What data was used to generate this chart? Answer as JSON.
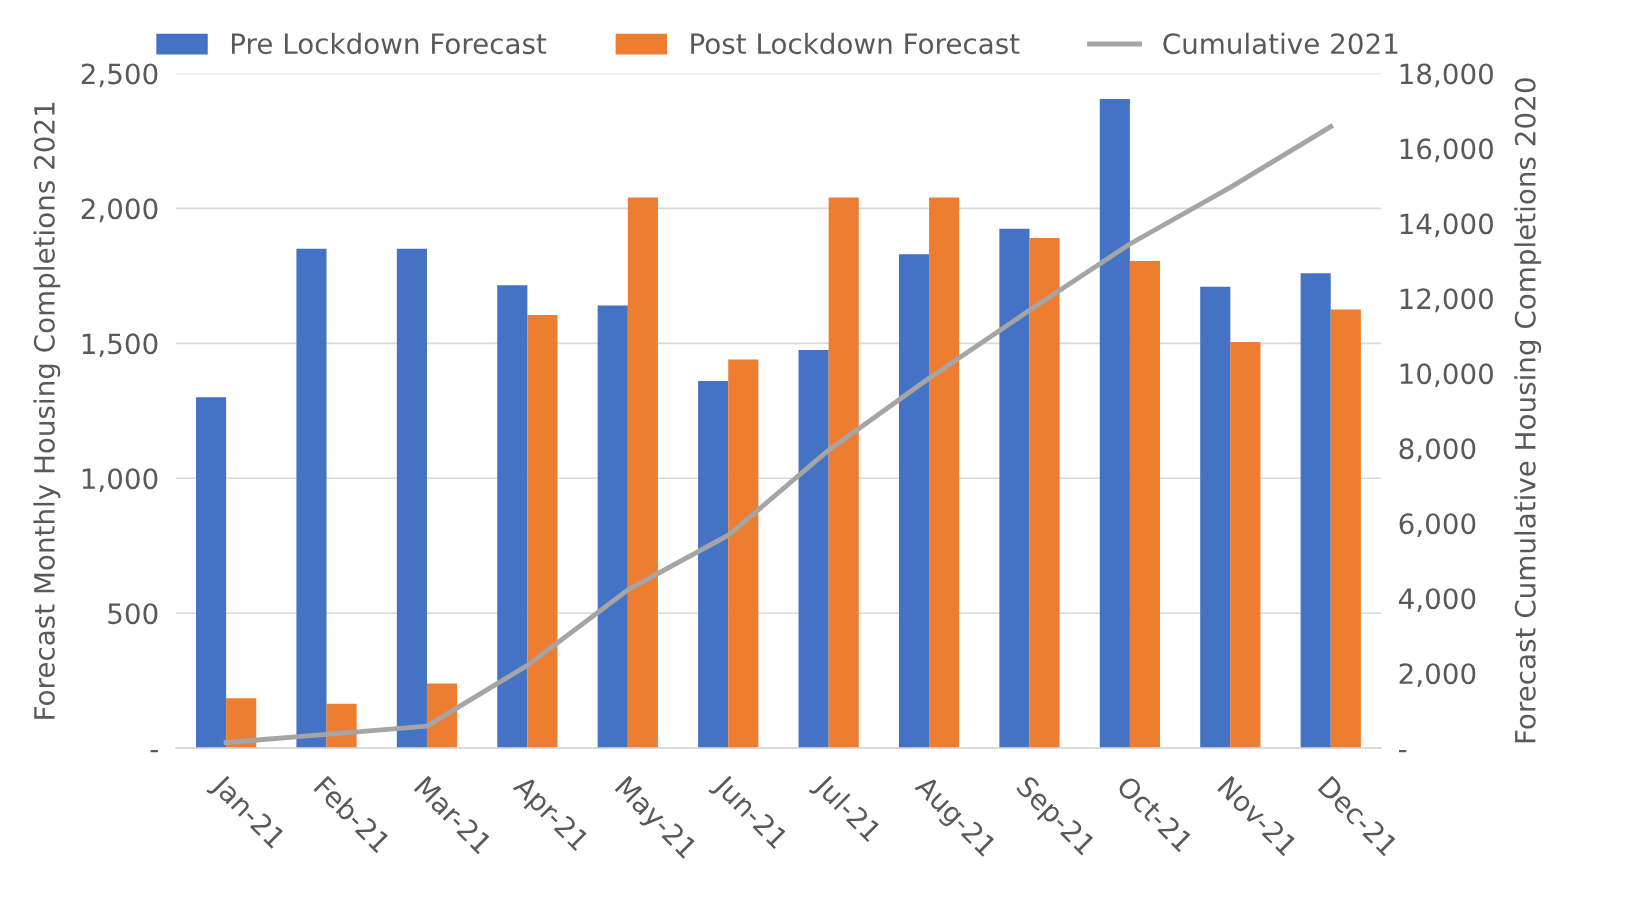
{
  "chart_data": {
    "type": "bar",
    "ylabel": "Forecast Monthly Housing Completions 2021",
    "y2label": "Forecast Cumulative Housing Completions 2020",
    "categories": [
      "Jan-21",
      "Feb-21",
      "Mar-21",
      "Apr-21",
      "May-21",
      "Jun-21",
      "Jul-21",
      "Aug-21",
      "Sep-21",
      "Oct-21",
      "Nov-21",
      "Dec-21"
    ],
    "series": [
      {
        "name": "Pre Lockdown Forecast",
        "color": "#4472c4",
        "values": [
          1300,
          1850,
          1850,
          1715,
          1640,
          1360,
          1475,
          1830,
          1925,
          2405,
          1710,
          1760
        ]
      },
      {
        "name": "Post Lockdown Forecast",
        "color": "#ed7d31",
        "values": [
          185,
          165,
          240,
          1605,
          2040,
          1440,
          2040,
          2040,
          1890,
          1805,
          1505,
          1625
        ]
      },
      {
        "name": "Cumulative 2021",
        "type": "line",
        "axis": "y2",
        "color": "#a5a5a5",
        "values": [
          150,
          370,
          590,
          2210,
          4220,
          5680,
          7950,
          9870,
          11680,
          13450,
          14960,
          16580
        ]
      }
    ],
    "ylim": [
      0,
      2500
    ],
    "yticks": [
      {
        "value": 0,
        "label": "-"
      },
      500,
      {
        "value": 1000,
        "label": "1,000"
      },
      {
        "value": 1500,
        "label": "1,500"
      },
      {
        "value": 2000,
        "label": "2,000"
      },
      {
        "value": 2500,
        "label": "2,500"
      }
    ],
    "y2lim": [
      0,
      18000
    ],
    "y2ticks": [
      {
        "value": 0,
        "label": "-"
      },
      {
        "value": 2000,
        "label": "2,000"
      },
      {
        "value": 4000,
        "label": "4,000"
      },
      {
        "value": 6000,
        "label": "6,000"
      },
      {
        "value": 8000,
        "label": "8,000"
      },
      {
        "value": 10000,
        "label": "10,000"
      },
      {
        "value": 12000,
        "label": "12,000"
      },
      {
        "value": 14000,
        "label": "14,000"
      },
      {
        "value": 16000,
        "label": "16,000"
      },
      {
        "value": 18000,
        "label": "18,000"
      }
    ],
    "grid": "y",
    "legend": "top",
    "marker": "none",
    "line_style": "solid"
  }
}
